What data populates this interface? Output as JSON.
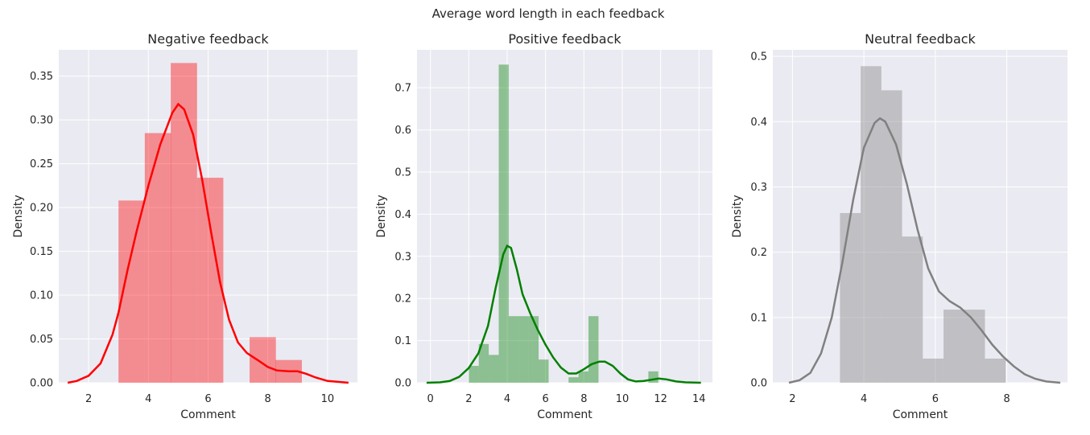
{
  "figure": {
    "suptitle": "Average word length in each feedback"
  },
  "chart_data": [
    {
      "type": "histogram",
      "title": "Negative feedback",
      "xlabel": "Comment",
      "ylabel": "Density",
      "xlim": [
        1.0,
        11.0
      ],
      "ylim": [
        0.0,
        0.38
      ],
      "xticks": [
        2,
        4,
        6,
        8,
        10
      ],
      "yticks": [
        0.0,
        0.05,
        0.1,
        0.15,
        0.2,
        0.25,
        0.3,
        0.35
      ],
      "ytick_decimals": 2,
      "grid": true,
      "color": "#ff0000",
      "bin_width": 0.88,
      "bins": [
        {
          "x0": 3.0,
          "density": 0.208
        },
        {
          "x0": 3.88,
          "density": 0.285
        },
        {
          "x0": 4.75,
          "density": 0.365
        },
        {
          "x0": 5.63,
          "density": 0.234
        },
        {
          "x0": 6.51,
          "density": 0.0
        },
        {
          "x0": 7.39,
          "density": 0.052
        },
        {
          "x0": 8.26,
          "density": 0.026
        }
      ],
      "kde": [
        [
          1.3,
          0.0
        ],
        [
          1.6,
          0.002
        ],
        [
          2.0,
          0.008
        ],
        [
          2.4,
          0.022
        ],
        [
          2.8,
          0.055
        ],
        [
          3.0,
          0.08
        ],
        [
          3.3,
          0.128
        ],
        [
          3.6,
          0.172
        ],
        [
          4.0,
          0.225
        ],
        [
          4.4,
          0.272
        ],
        [
          4.8,
          0.308
        ],
        [
          5.0,
          0.318
        ],
        [
          5.2,
          0.312
        ],
        [
          5.5,
          0.283
        ],
        [
          5.8,
          0.232
        ],
        [
          6.1,
          0.172
        ],
        [
          6.4,
          0.115
        ],
        [
          6.7,
          0.072
        ],
        [
          7.0,
          0.046
        ],
        [
          7.3,
          0.034
        ],
        [
          7.7,
          0.025
        ],
        [
          8.0,
          0.018
        ],
        [
          8.3,
          0.014
        ],
        [
          8.7,
          0.013
        ],
        [
          9.0,
          0.013
        ],
        [
          9.3,
          0.01
        ],
        [
          9.6,
          0.006
        ],
        [
          10.0,
          0.002
        ],
        [
          10.7,
          0.0
        ]
      ]
    },
    {
      "type": "histogram",
      "title": "Positive feedback",
      "xlabel": "Comment",
      "ylabel": "Density",
      "xlim": [
        -0.7,
        14.7
      ],
      "ylim": [
        0.0,
        0.79
      ],
      "xticks": [
        0,
        2,
        4,
        6,
        8,
        10,
        12,
        14
      ],
      "yticks": [
        0.0,
        0.1,
        0.2,
        0.3,
        0.4,
        0.5,
        0.6,
        0.7
      ],
      "ytick_decimals": 1,
      "grid": true,
      "color": "#008000",
      "bin_width": 0.52,
      "bins": [
        {
          "x0": 2.0,
          "density": 0.04
        },
        {
          "x0": 2.52,
          "density": 0.092
        },
        {
          "x0": 3.04,
          "density": 0.066
        },
        {
          "x0": 3.56,
          "density": 0.755
        },
        {
          "x0": 4.08,
          "density": 0.158
        },
        {
          "x0": 4.6,
          "density": 0.158
        },
        {
          "x0": 5.12,
          "density": 0.158
        },
        {
          "x0": 5.64,
          "density": 0.055
        },
        {
          "x0": 6.16,
          "density": 0.0
        },
        {
          "x0": 6.68,
          "density": 0.0
        },
        {
          "x0": 7.2,
          "density": 0.013
        },
        {
          "x0": 7.72,
          "density": 0.027
        },
        {
          "x0": 8.24,
          "density": 0.158
        },
        {
          "x0": 8.76,
          "density": 0.0
        },
        {
          "x0": 9.28,
          "density": 0.0
        },
        {
          "x0": 9.8,
          "density": 0.0
        },
        {
          "x0": 10.32,
          "density": 0.0
        },
        {
          "x0": 10.84,
          "density": 0.0
        },
        {
          "x0": 11.36,
          "density": 0.027
        }
      ],
      "kde": [
        [
          -0.2,
          0.0
        ],
        [
          0.5,
          0.001
        ],
        [
          1.0,
          0.004
        ],
        [
          1.5,
          0.014
        ],
        [
          2.0,
          0.035
        ],
        [
          2.5,
          0.07
        ],
        [
          3.0,
          0.135
        ],
        [
          3.4,
          0.225
        ],
        [
          3.8,
          0.305
        ],
        [
          4.0,
          0.325
        ],
        [
          4.2,
          0.32
        ],
        [
          4.5,
          0.27
        ],
        [
          4.8,
          0.21
        ],
        [
          5.2,
          0.165
        ],
        [
          5.6,
          0.125
        ],
        [
          6.0,
          0.09
        ],
        [
          6.4,
          0.06
        ],
        [
          6.8,
          0.036
        ],
        [
          7.2,
          0.022
        ],
        [
          7.6,
          0.022
        ],
        [
          8.0,
          0.032
        ],
        [
          8.4,
          0.044
        ],
        [
          8.8,
          0.05
        ],
        [
          9.1,
          0.05
        ],
        [
          9.5,
          0.04
        ],
        [
          9.9,
          0.022
        ],
        [
          10.3,
          0.008
        ],
        [
          10.7,
          0.003
        ],
        [
          11.1,
          0.004
        ],
        [
          11.5,
          0.007
        ],
        [
          11.9,
          0.01
        ],
        [
          12.3,
          0.008
        ],
        [
          12.8,
          0.003
        ],
        [
          13.3,
          0.001
        ],
        [
          14.1,
          0.0
        ]
      ]
    },
    {
      "type": "histogram",
      "title": "Neutral feedback",
      "xlabel": "Comment",
      "ylabel": "Density",
      "xlim": [
        1.45,
        9.7
      ],
      "ylim": [
        0.0,
        0.51
      ],
      "xticks": [
        2,
        4,
        6,
        8
      ],
      "yticks": [
        0.0,
        0.1,
        0.2,
        0.3,
        0.4,
        0.5
      ],
      "ytick_decimals": 1,
      "grid": true,
      "color": "#808080",
      "bin_width": 0.58,
      "bins": [
        {
          "x0": 3.33,
          "density": 0.26
        },
        {
          "x0": 3.91,
          "density": 0.485
        },
        {
          "x0": 4.49,
          "density": 0.448
        },
        {
          "x0": 5.07,
          "density": 0.224
        },
        {
          "x0": 5.65,
          "density": 0.037
        },
        {
          "x0": 6.23,
          "density": 0.112
        },
        {
          "x0": 6.81,
          "density": 0.112
        },
        {
          "x0": 7.39,
          "density": 0.037
        }
      ],
      "kde": [
        [
          1.9,
          0.0
        ],
        [
          2.2,
          0.004
        ],
        [
          2.5,
          0.015
        ],
        [
          2.8,
          0.045
        ],
        [
          3.1,
          0.1
        ],
        [
          3.4,
          0.185
        ],
        [
          3.7,
          0.28
        ],
        [
          4.0,
          0.36
        ],
        [
          4.3,
          0.398
        ],
        [
          4.45,
          0.405
        ],
        [
          4.6,
          0.4
        ],
        [
          4.9,
          0.365
        ],
        [
          5.2,
          0.305
        ],
        [
          5.5,
          0.235
        ],
        [
          5.8,
          0.175
        ],
        [
          6.1,
          0.14
        ],
        [
          6.4,
          0.125
        ],
        [
          6.7,
          0.115
        ],
        [
          7.0,
          0.1
        ],
        [
          7.3,
          0.08
        ],
        [
          7.6,
          0.058
        ],
        [
          7.9,
          0.04
        ],
        [
          8.2,
          0.025
        ],
        [
          8.5,
          0.013
        ],
        [
          8.8,
          0.006
        ],
        [
          9.1,
          0.002
        ],
        [
          9.5,
          0.0
        ]
      ]
    }
  ]
}
